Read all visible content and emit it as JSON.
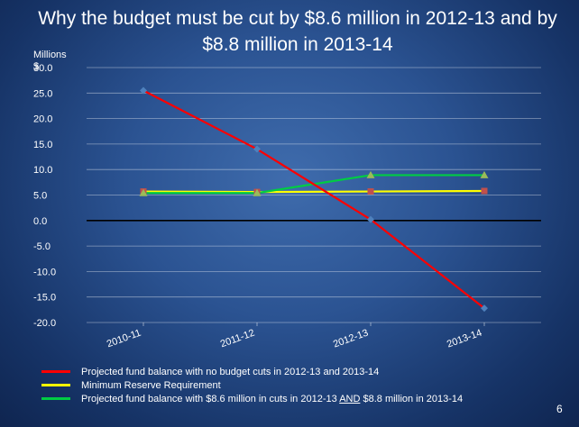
{
  "slide": {
    "title": "Why the budget must be cut by $8.6 million in 2012-13 and by $8.8 million in 2013-14",
    "page_number": "6"
  },
  "chart_data": {
    "type": "line",
    "unit_label_line1": "Millions",
    "unit_label_line2": "$",
    "categories": [
      "2010-11",
      "2011-12",
      "2012-13",
      "2013-14"
    ],
    "ylim": [
      -20,
      30
    ],
    "yticks": [
      "30.0",
      "25.0",
      "20.0",
      "15.0",
      "10.0",
      "5.0",
      "0.0",
      "-5.0",
      "-10.0",
      "-15.0",
      "-20.0"
    ],
    "ytick_values": [
      30,
      25,
      20,
      15,
      10,
      5,
      0,
      -5,
      -10,
      -15,
      -20
    ],
    "grid": true,
    "legend_position": "bottom",
    "series": [
      {
        "key": "no_cuts",
        "name": "Projected fund balance with no budget cuts in 2012-13 and 2013-14",
        "values": [
          25.5,
          14.0,
          0.2,
          -17.2
        ],
        "color": "#ff0000",
        "marker": "diamond",
        "marker_color": "#4f81bd"
      },
      {
        "key": "reserve",
        "name": "Minimum Reserve Requirement",
        "values": [
          5.7,
          5.6,
          5.7,
          5.8
        ],
        "color": "#ffff00",
        "marker": "square",
        "marker_color": "#c0504d"
      },
      {
        "key": "with_cuts",
        "name_prefix": "Projected fund balance with $8.6 million in cuts in 2012-13 ",
        "name_emphasis": "AND",
        "name_suffix": " $8.8 million in 2013-14",
        "values": [
          5.4,
          5.4,
          8.9,
          8.9
        ],
        "color": "#00cc44",
        "marker": "triangle",
        "marker_color": "#9bbb59"
      }
    ]
  }
}
